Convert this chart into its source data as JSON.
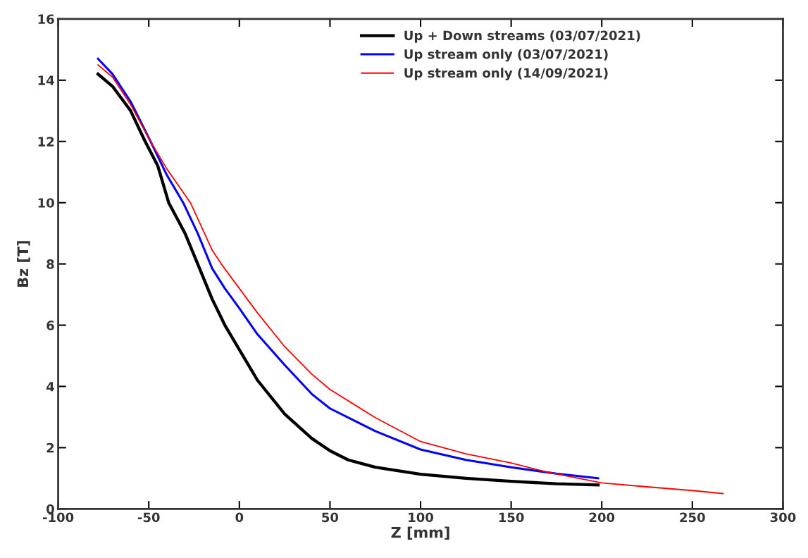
{
  "chart_data": {
    "type": "line",
    "xlabel": "Z [mm]",
    "ylabel": "Bz [T]",
    "xlim": [
      -100,
      300
    ],
    "xticks": [
      -100,
      -50,
      0,
      50,
      100,
      150,
      200,
      250,
      300
    ],
    "ylim": [
      0,
      16
    ],
    "yticks": [
      0,
      2,
      4,
      6,
      8,
      10,
      12,
      14,
      16
    ],
    "grid": false,
    "legend": "top right",
    "marker": "none",
    "line_style": "solid",
    "series": [
      {
        "name": "Up + Down streams (03/07/2021)",
        "color": "#000000",
        "x": [
          -78,
          -70,
          -60,
          -52,
          -45,
          -39,
          -30,
          -23,
          -15,
          -8,
          0,
          10,
          25,
          40,
          50,
          60,
          75,
          100,
          125,
          150,
          175,
          198
        ],
        "values": [
          14.2,
          13.8,
          13.0,
          12.0,
          11.2,
          10.0,
          9.0,
          8.0,
          6.85,
          6.0,
          5.2,
          4.2,
          3.1,
          2.3,
          1.9,
          1.6,
          1.36,
          1.13,
          1.0,
          0.9,
          0.82,
          0.78
        ]
      },
      {
        "name": "Up stream only (03/07/2021)",
        "color": "#0000ff",
        "x": [
          -78,
          -70,
          -60,
          -49,
          -40,
          -31,
          -23,
          -15,
          -8,
          0,
          10,
          25,
          40,
          50,
          75,
          100,
          125,
          150,
          175,
          198
        ],
        "values": [
          14.7,
          14.2,
          13.3,
          12.0,
          10.9,
          10.0,
          9.0,
          7.85,
          7.2,
          6.55,
          5.7,
          4.7,
          3.75,
          3.28,
          2.54,
          1.94,
          1.6,
          1.36,
          1.15,
          1.0
        ]
      },
      {
        "name": "Up stream only (14/09/2021)",
        "color": "#ff0000",
        "x": [
          -78,
          -70,
          -60,
          -49,
          -40,
          -27,
          -15,
          -10,
          0,
          10,
          25,
          40,
          50,
          75,
          100,
          125,
          150,
          170,
          200,
          225,
          250,
          267
        ],
        "values": [
          14.5,
          14.1,
          13.2,
          12.0,
          11.1,
          10.0,
          8.45,
          8.0,
          7.2,
          6.4,
          5.3,
          4.4,
          3.9,
          2.98,
          2.2,
          1.8,
          1.5,
          1.2,
          0.85,
          0.72,
          0.6,
          0.5
        ]
      }
    ]
  }
}
